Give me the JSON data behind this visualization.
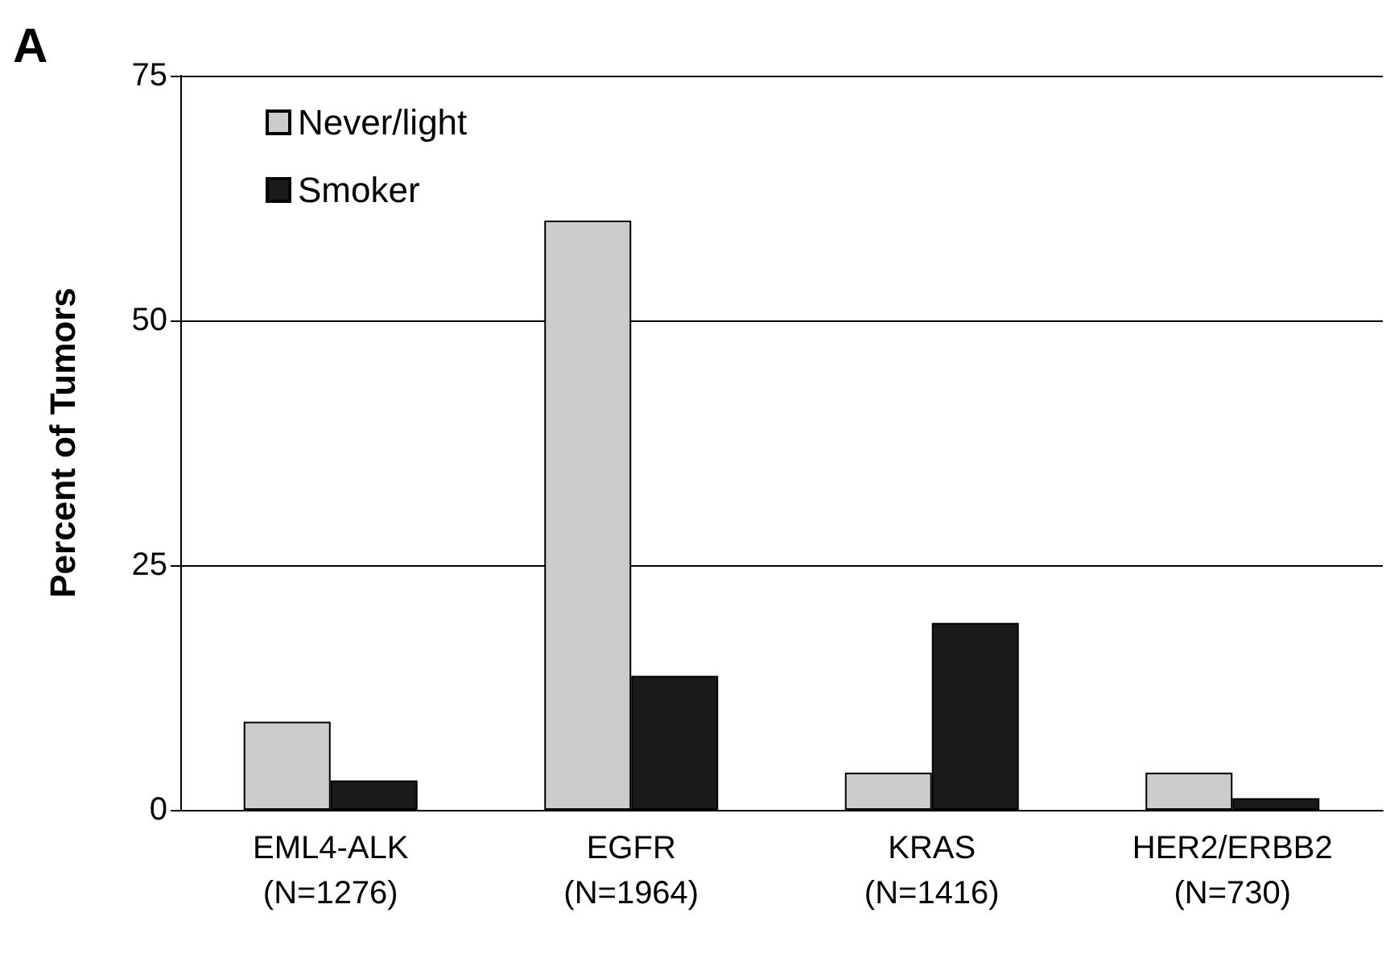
{
  "chart_data": {
    "type": "bar",
    "ylabel": "Percent of Tumors",
    "annotations": [
      "A"
    ],
    "categories": [
      "EML4-ALK\n(N=1276)",
      "EGFR\n(N=1964)",
      "KRAS\n(N=1416)",
      "HER2/ERBB2\n(N=730)"
    ],
    "series": [
      {
        "name": "Never/light",
        "color": "#cccccc",
        "values": [
          9.0,
          60.2,
          3.8,
          3.8
        ]
      },
      {
        "name": "Smoker",
        "color": "#1a1a1a",
        "values": [
          3.0,
          13.7,
          19.1,
          1.2
        ]
      }
    ],
    "ylim": [
      0,
      75
    ],
    "yticks": [
      0,
      25,
      50,
      75
    ],
    "grid": "y",
    "legend": "top left"
  }
}
